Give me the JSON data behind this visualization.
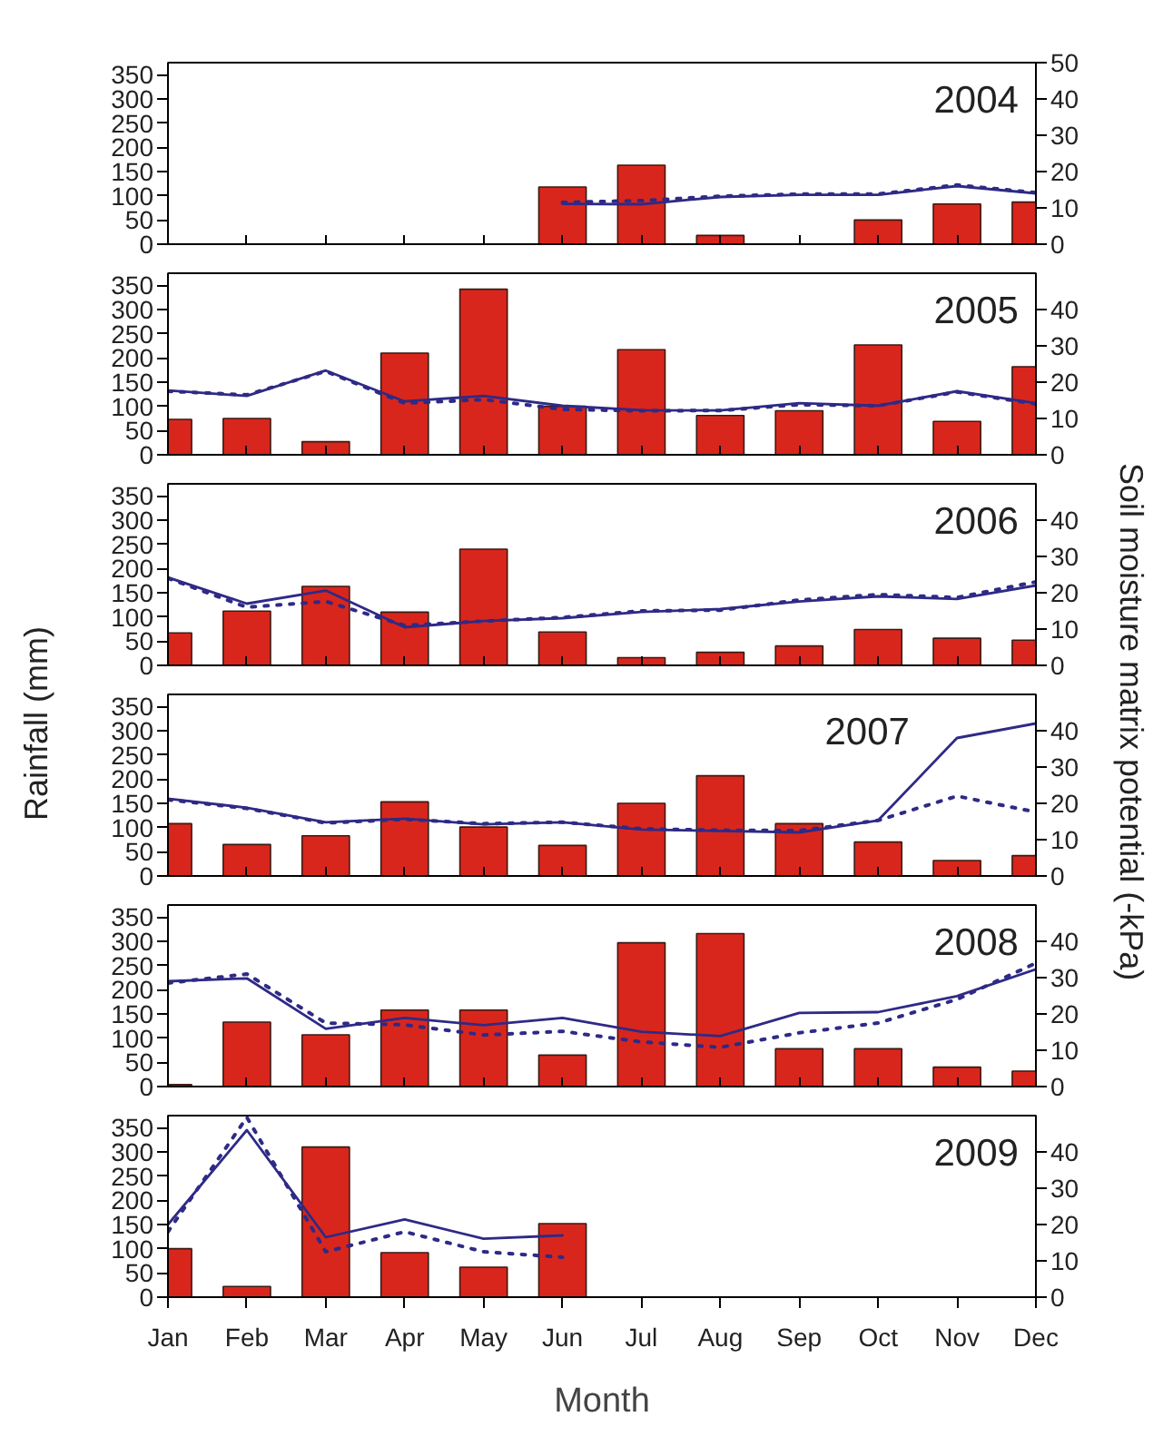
{
  "chart_data": [
    {
      "type": "bar",
      "title": "2004",
      "categories": [
        null,
        null,
        null,
        null,
        null,
        null,
        null,
        null,
        null,
        null,
        null,
        null
      ],
      "ylim": [
        0,
        375
      ],
      "yticks": [
        0,
        50,
        100,
        150,
        200,
        250,
        300,
        350
      ],
      "y2lim": [
        0,
        50
      ],
      "y2ticks": [
        0,
        10,
        20,
        30,
        40,
        50
      ],
      "tick_labels": "y",
      "grid": false,
      "series": [
        {
          "color": "#d9261c",
          "values": [
            null,
            null,
            null,
            null,
            null,
            118,
            163,
            18,
            null,
            50,
            83,
            87
          ]
        },
        {
          "type": "line",
          "axis": "y2",
          "line_style": "solid",
          "color": "#2e2a86",
          "values": [
            null,
            null,
            null,
            null,
            null,
            11.1,
            11,
            13,
            13.6,
            13.6,
            16,
            14
          ]
        },
        {
          "type": "line",
          "axis": "y2",
          "line_style": "dotted",
          "color": "#2e2a86",
          "values": [
            null,
            null,
            null,
            null,
            null,
            11.5,
            12,
            13.2,
            13.8,
            13.8,
            16.3,
            14.2
          ]
        }
      ]
    },
    {
      "type": "bar",
      "title": "2005",
      "categories": [
        null,
        null,
        null,
        null,
        null,
        null,
        null,
        null,
        null,
        null,
        null,
        null
      ],
      "ylim": [
        0,
        375
      ],
      "yticks": [
        0,
        50,
        100,
        150,
        200,
        250,
        300,
        350
      ],
      "y2lim": [
        0,
        50
      ],
      "y2ticks": [
        0,
        10,
        20,
        30,
        40
      ],
      "tick_labels": "y",
      "grid": false,
      "series": [
        {
          "color": "#d9261c",
          "values": [
            73,
            75,
            27,
            210,
            342,
            100,
            217,
            81,
            91,
            227,
            69,
            182
          ]
        },
        {
          "type": "line",
          "axis": "y2",
          "line_style": "solid",
          "color": "#2e2a86",
          "values": [
            17.7,
            16.2,
            23.2,
            14.7,
            16.2,
            13.5,
            12.3,
            12.2,
            14.2,
            13.5,
            17.5,
            14.2
          ]
        },
        {
          "type": "line",
          "axis": "y2",
          "line_style": "dotted",
          "color": "#2e2a86",
          "values": [
            17.5,
            16.5,
            23,
            14.2,
            15.2,
            12.5,
            12.1,
            12.2,
            13.8,
            13.5,
            17.3,
            14
          ]
        }
      ]
    },
    {
      "type": "bar",
      "title": "2006",
      "categories": [
        null,
        null,
        null,
        null,
        null,
        null,
        null,
        null,
        null,
        null,
        null,
        null
      ],
      "ylim": [
        0,
        375
      ],
      "yticks": [
        0,
        50,
        100,
        150,
        200,
        250,
        300,
        350
      ],
      "y2lim": [
        0,
        50
      ],
      "y2ticks": [
        0,
        10,
        20,
        30,
        40
      ],
      "tick_labels": "y",
      "grid": false,
      "series": [
        {
          "color": "#d9261c",
          "values": [
            67,
            112,
            163,
            110,
            240,
            69,
            16,
            27,
            40,
            74,
            56,
            52
          ]
        },
        {
          "type": "line",
          "axis": "y2",
          "line_style": "solid",
          "color": "#2e2a86",
          "values": [
            24.2,
            17,
            20.6,
            10.5,
            12.2,
            13,
            14.7,
            15.5,
            17.6,
            19,
            18.3,
            22
          ]
        },
        {
          "type": "line",
          "axis": "y2",
          "line_style": "dotted",
          "color": "#2e2a86",
          "values": [
            24,
            16,
            17.6,
            11,
            12.2,
            13.2,
            15,
            15.2,
            18,
            19.5,
            18.7,
            23
          ]
        }
      ]
    },
    {
      "type": "bar",
      "title": "2007",
      "ylabel": "Rainfall (mm)",
      "y2label": "Soil moisture matrix potential (-kPa)",
      "categories": [
        null,
        null,
        null,
        null,
        null,
        null,
        null,
        null,
        null,
        null,
        null,
        null
      ],
      "ylim": [
        0,
        375
      ],
      "yticks": [
        0,
        50,
        100,
        150,
        200,
        250,
        300,
        350
      ],
      "y2lim": [
        0,
        50
      ],
      "y2ticks": [
        0,
        10,
        20,
        30,
        40
      ],
      "tick_labels": "y",
      "grid": false,
      "series": [
        {
          "color": "#d9261c",
          "values": [
            108,
            65,
            83,
            153,
            101,
            63,
            150,
            207,
            108,
            70,
            32,
            42
          ]
        },
        {
          "type": "line",
          "axis": "y2",
          "line_style": "solid",
          "color": "#2e2a86",
          "values": [
            21.3,
            18.8,
            14.8,
            15.8,
            14.2,
            14.8,
            12.8,
            12.4,
            12,
            15.3,
            38,
            42
          ]
        },
        {
          "type": "line",
          "axis": "y2",
          "line_style": "dotted",
          "color": "#2e2a86",
          "values": [
            21,
            18.6,
            14.6,
            15.6,
            14.4,
            14.8,
            13,
            12.6,
            12.5,
            15.3,
            22,
            17.6
          ]
        }
      ]
    },
    {
      "type": "bar",
      "title": "2008",
      "categories": [
        null,
        null,
        null,
        null,
        null,
        null,
        null,
        null,
        null,
        null,
        null,
        null
      ],
      "ylim": [
        0,
        375
      ],
      "yticks": [
        0,
        50,
        100,
        150,
        200,
        250,
        300,
        350
      ],
      "y2lim": [
        0,
        50
      ],
      "y2ticks": [
        0,
        10,
        20,
        30,
        40
      ],
      "tick_labels": "y",
      "grid": false,
      "series": [
        {
          "color": "#d9261c",
          "values": [
            4,
            133,
            107,
            158,
            158,
            65,
            297,
            316,
            78,
            78,
            40,
            32
          ]
        },
        {
          "type": "line",
          "axis": "y2",
          "line_style": "solid",
          "color": "#2e2a86",
          "values": [
            29,
            29.8,
            15.9,
            18.9,
            16.9,
            18.9,
            15.1,
            13.9,
            20.3,
            20.5,
            24.9,
            32.3
          ]
        },
        {
          "type": "line",
          "axis": "y2",
          "line_style": "dotted",
          "color": "#2e2a86",
          "values": [
            28.5,
            31,
            17.5,
            17,
            14.2,
            15.2,
            12.3,
            10.8,
            14.8,
            17.5,
            24,
            34
          ]
        }
      ]
    },
    {
      "type": "bar",
      "title": "2009",
      "xlabel": "Month",
      "categories": [
        "Jan",
        "Feb",
        "Mar",
        "Apr",
        "May",
        "Jun",
        "Jul",
        "Aug",
        "Sep",
        "Oct",
        "Nov",
        "Dec"
      ],
      "ylim": [
        0,
        375
      ],
      "yticks": [
        0,
        50,
        100,
        150,
        200,
        250,
        300,
        350
      ],
      "y2lim": [
        0,
        50
      ],
      "y2ticks": [
        0,
        10,
        20,
        30,
        40
      ],
      "grid": false,
      "series": [
        {
          "color": "#d9261c",
          "values": [
            100,
            22,
            310,
            92,
            62,
            152,
            null,
            null,
            null,
            null,
            null,
            null
          ]
        },
        {
          "type": "line",
          "axis": "y2",
          "line_style": "solid",
          "color": "#2e2a86",
          "values": [
            20,
            46,
            16.5,
            21.4,
            16.1,
            17,
            null,
            null,
            null,
            null,
            null,
            null
          ]
        },
        {
          "type": "line",
          "axis": "y2",
          "line_style": "dotted",
          "color": "#2e2a86",
          "values": [
            18,
            49.5,
            12.5,
            18,
            12.5,
            11,
            null,
            null,
            null,
            null,
            null,
            null
          ]
        }
      ]
    }
  ]
}
